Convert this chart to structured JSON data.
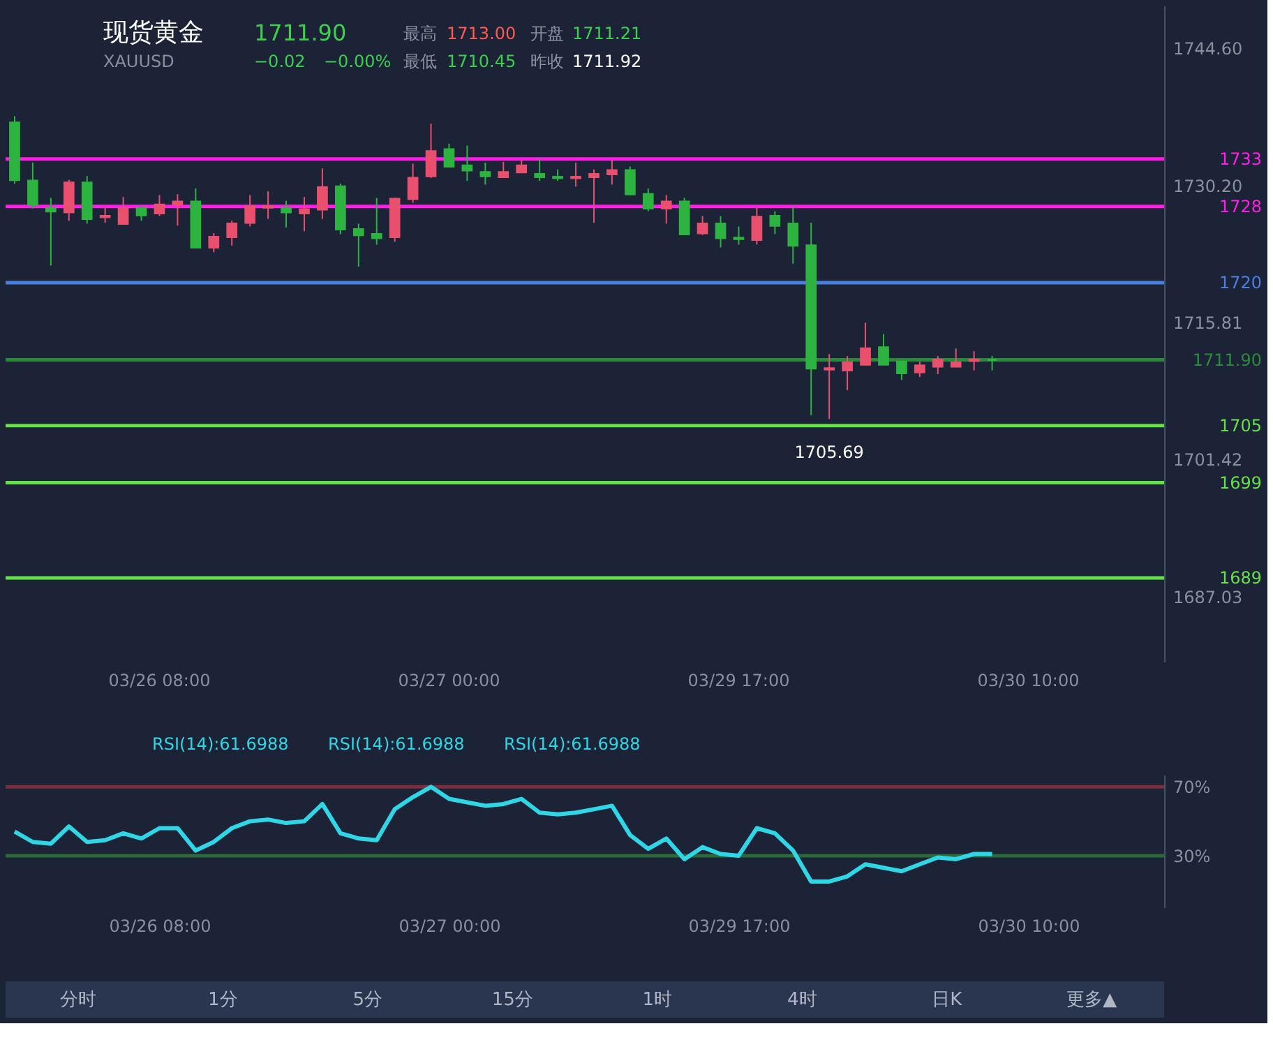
{
  "chart_data": [
    {
      "type": "candlestick",
      "title": "现货黄金",
      "subtitle": "XAUUSD",
      "categories": [
        null,
        null,
        null,
        null,
        null,
        null,
        null,
        null,
        "03/26 08:00",
        null,
        null,
        null,
        null,
        null,
        null,
        null,
        null,
        null,
        null,
        null,
        null,
        null,
        null,
        null,
        "03/27 00:00",
        null,
        null,
        null,
        null,
        null,
        null,
        null,
        null,
        null,
        null,
        null,
        null,
        null,
        null,
        null,
        "03/29 17:00",
        null,
        null,
        null,
        null,
        null,
        null,
        null,
        null,
        null,
        null,
        null,
        null,
        null,
        null,
        null,
        "03/30 10:00",
        null,
        null,
        null,
        null,
        null,
        null,
        null
      ],
      "ohlc": [
        [
          1736.8,
          1737.5,
          1730.4,
          1730.8
        ],
        [
          1730.7,
          1732.6,
          1727.8,
          1728.2
        ],
        [
          1727.8,
          1728.9,
          1721.8,
          1727.5
        ],
        [
          1727.4,
          1730.8,
          1726.5,
          1730.5
        ],
        [
          1730.5,
          1731.2,
          1726.2,
          1726.7
        ],
        [
          1726.9,
          1728.0,
          1726.3,
          1727.0
        ],
        [
          1726.2,
          1729.0,
          1726.2,
          1727.8
        ],
        [
          1727.8,
          1728.0,
          1726.5,
          1727.1
        ],
        [
          1727.3,
          1729.2,
          1727.0,
          1728.2
        ],
        [
          1728.2,
          1729.3,
          1726.0,
          1728.5
        ],
        [
          1728.5,
          1729.9,
          1723.7,
          1723.7
        ],
        [
          1723.7,
          1725.2,
          1723.2,
          1724.8
        ],
        [
          1724.8,
          1726.5,
          1723.9,
          1726.2
        ],
        [
          1726.3,
          1729.2,
          1725.9,
          1728.0
        ],
        [
          1727.9,
          1729.6,
          1726.7,
          1728.0
        ],
        [
          1727.8,
          1728.6,
          1725.8,
          1727.4
        ],
        [
          1727.3,
          1729.0,
          1725.4,
          1727.7
        ],
        [
          1727.7,
          1732.0,
          1726.7,
          1730.0
        ],
        [
          1730.1,
          1730.4,
          1725.1,
          1725.6
        ],
        [
          1725.6,
          1726.2,
          1721.7,
          1725.0
        ],
        [
          1725.1,
          1728.9,
          1724.0,
          1724.7
        ],
        [
          1724.8,
          1728.9,
          1724.3,
          1728.8
        ],
        [
          1728.8,
          1732.5,
          1728.4,
          1731.0
        ],
        [
          1731.2,
          1736.7,
          1731.0,
          1733.8
        ],
        [
          1734.0,
          1734.6,
          1732.2,
          1732.2
        ],
        [
          1732.3,
          1734.4,
          1730.7,
          1731.8
        ],
        [
          1731.6,
          1732.6,
          1730.3,
          1731.2
        ],
        [
          1731.1,
          1732.7,
          1731.0,
          1731.6
        ],
        [
          1731.6,
          1732.9,
          1731.6,
          1732.3
        ],
        [
          1731.4,
          1733.0,
          1730.7,
          1731.1
        ],
        [
          1731.1,
          1731.9,
          1730.7,
          1731.0
        ],
        [
          1731.0,
          1732.6,
          1730.1,
          1731.1
        ],
        [
          1731.1,
          1731.9,
          1726.3,
          1731.4
        ],
        [
          1731.4,
          1732.9,
          1730.3,
          1731.8
        ],
        [
          1731.8,
          1732.2,
          1729.2,
          1729.3
        ],
        [
          1729.3,
          1729.9,
          1727.5,
          1727.8
        ],
        [
          1727.8,
          1729.2,
          1726.2,
          1728.5
        ],
        [
          1728.5,
          1728.9,
          1725.1,
          1725.1
        ],
        [
          1725.2,
          1727.0,
          1725.0,
          1726.2
        ],
        [
          1726.2,
          1727.0,
          1723.7,
          1724.7
        ],
        [
          1724.7,
          1725.9,
          1724.0,
          1724.6
        ],
        [
          1724.5,
          1728.0,
          1724.0,
          1726.9
        ],
        [
          1727.0,
          1727.5,
          1725.1,
          1726.0
        ],
        [
          1726.2,
          1728.0,
          1722.0,
          1723.9
        ],
        [
          1723.9,
          1726.3,
          1706.1,
          1711.0
        ],
        [
          1710.9,
          1712.5,
          1705.69,
          1711.0
        ],
        [
          1710.8,
          1712.3,
          1708.7,
          1711.6
        ],
        [
          1711.4,
          1715.8,
          1711.4,
          1713.1
        ],
        [
          1713.2,
          1714.6,
          1711.4,
          1711.4
        ],
        [
          1711.7,
          1711.7,
          1709.8,
          1710.5
        ],
        [
          1710.6,
          1711.7,
          1710.1,
          1711.3
        ],
        [
          1711.2,
          1712.3,
          1710.4,
          1711.9
        ],
        [
          1711.2,
          1713.1,
          1711.2,
          1711.6
        ],
        [
          1711.8,
          1712.8,
          1710.8,
          1711.9
        ],
        [
          1711.9,
          1712.3,
          1710.8,
          1711.9
        ],
        null,
        null,
        null,
        null,
        null,
        null,
        null,
        null,
        null
      ],
      "colors": [
        "#2db33f",
        "#2db33f",
        "#2db33f",
        "#e8506e",
        "#2db33f",
        "#e8506e",
        "#e8506e",
        "#2db33f",
        "#e8506e",
        "#e8506e",
        "#2db33f",
        "#e8506e",
        "#e8506e",
        "#e8506e",
        "#e8506e",
        "#2db33f",
        "#e8506e",
        "#e8506e",
        "#2db33f",
        "#2db33f",
        "#2db33f",
        "#e8506e",
        "#e8506e",
        "#e8506e",
        "#2db33f",
        "#2db33f",
        "#2db33f",
        "#e8506e",
        "#e8506e",
        "#2db33f",
        "#2db33f",
        "#e8506e",
        "#e8506e",
        "#e8506e",
        "#2db33f",
        "#2db33f",
        "#e8506e",
        "#2db33f",
        "#e8506e",
        "#2db33f",
        "#2db33f",
        "#e8506e",
        "#2db33f",
        "#2db33f",
        "#2db33f",
        "#e8506e",
        "#e8506e",
        "#e8506e",
        "#2db33f",
        "#2db33f",
        "#e8506e",
        "#e8506e",
        "#e8506e",
        "#e8506e",
        "#2db33f",
        null,
        null,
        null,
        null,
        null,
        null,
        null,
        null,
        null
      ],
      "ylim": [
        1680.2,
        1749.1
      ],
      "yticks": [
        {
          "value": 1744.6,
          "label": "1744.60"
        },
        {
          "value": 1730.2,
          "label": "1730.20"
        },
        1715.81,
        1701.42,
        1687.03
      ],
      "ref_lines": [
        {
          "axis": "y",
          "value": 1733,
          "label": "1733",
          "color": "#ff1ee6"
        },
        {
          "axis": "y",
          "value": 1728,
          "label": "1728",
          "color": "#ff1ee6"
        },
        {
          "axis": "y",
          "value": 1720,
          "label": "1720",
          "color": "#4a7fe0"
        },
        {
          "axis": "y",
          "value": 1711.9,
          "label": "1711.90",
          "color": "#2a8a3a"
        },
        {
          "axis": "y",
          "value": 1705,
          "label": "1705",
          "color": "#66e04a"
        },
        {
          "axis": "y",
          "value": 1699,
          "label": "1699",
          "color": "#66e04a"
        },
        {
          "axis": "y",
          "value": 1689,
          "label": "1689",
          "color": "#66e04a"
        }
      ],
      "annotations": [
        "1711.90",
        "−0.02",
        "−0.00%",
        "最高",
        "1713.00",
        "开盘",
        "1711.21",
        "最低",
        "1710.45",
        "昨收",
        "1711.92",
        {
          "text": "1705.69",
          "y": 1705.69
        }
      ]
    },
    {
      "type": "line",
      "categories": [
        null,
        null,
        null,
        null,
        null,
        null,
        null,
        null,
        "03/26 08:00",
        null,
        null,
        null,
        null,
        null,
        null,
        null,
        null,
        null,
        null,
        null,
        null,
        null,
        null,
        null,
        "03/27 00:00",
        null,
        null,
        null,
        null,
        null,
        null,
        null,
        null,
        null,
        null,
        null,
        null,
        null,
        null,
        null,
        "03/29 17:00",
        null,
        null,
        null,
        null,
        null,
        null,
        null,
        null,
        null,
        null,
        null,
        null,
        null,
        null,
        null,
        "03/30 10:00",
        null,
        null,
        null,
        null,
        null,
        null,
        null
      ],
      "series": [
        {
          "color": "#2fd6e6",
          "values": [
            44,
            38,
            37,
            47,
            38,
            39,
            43,
            40,
            46,
            46,
            33,
            38,
            46,
            50,
            51,
            49,
            50,
            60,
            43,
            40,
            39,
            57,
            64,
            70,
            63,
            61,
            59,
            60,
            63,
            55,
            54,
            55,
            57,
            59,
            42,
            34,
            40,
            28,
            35,
            31,
            30,
            46,
            43,
            33,
            15,
            15,
            18,
            25,
            23,
            21,
            25,
            29,
            28,
            31,
            31,
            null,
            null,
            null,
            null,
            null,
            null,
            null,
            null,
            null
          ]
        }
      ],
      "ylim": [
        0,
        77
      ],
      "yticks": [
        {
          "value": 70,
          "label": "70%"
        },
        {
          "value": 30,
          "label": "30%"
        }
      ],
      "ref_lines": [
        {
          "axis": "y",
          "value": 70,
          "color": "#7a2e3e"
        },
        {
          "axis": "y",
          "value": 30,
          "color": "#2b6b3a"
        }
      ],
      "annotations": [
        "RSI(14):61.6988",
        "RSI(14):61.6988",
        "RSI(14):61.6988"
      ]
    },
    {
      "type": "other",
      "annotations": [
        "分时",
        "1分",
        "5分",
        "15分",
        "1时",
        "4时",
        "日K",
        "更多▲"
      ]
    }
  ]
}
